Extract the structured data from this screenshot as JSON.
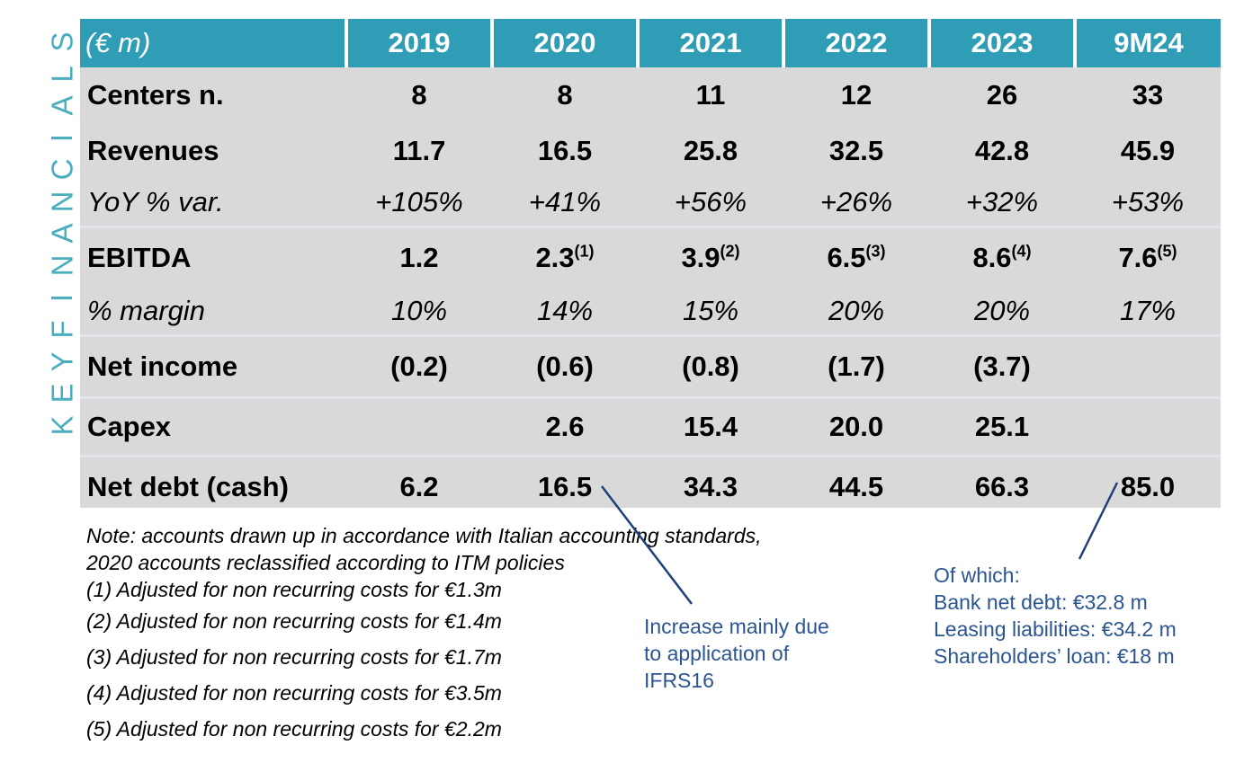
{
  "side_title": "KEY FINANCIALS",
  "table": {
    "unit_label": "(€ m)",
    "years": [
      "2019",
      "2020",
      "2021",
      "2022",
      "2023",
      "9M24"
    ],
    "rows": [
      {
        "label": "Centers n.",
        "values": [
          "8",
          "8",
          "11",
          "12",
          "26",
          "33"
        ],
        "sups": [
          "",
          "",
          "",
          "",
          "",
          ""
        ]
      },
      {
        "label": "Revenues",
        "values": [
          "11.7",
          "16.5",
          "25.8",
          "32.5",
          "42.8",
          "45.9"
        ],
        "sups": [
          "",
          "",
          "",
          "",
          "",
          ""
        ]
      },
      {
        "label": "YoY % var.",
        "values": [
          "+105%",
          "+41%",
          "+56%",
          "+26%",
          "+32%",
          "+53%"
        ],
        "sups": [
          "",
          "",
          "",
          "",
          "",
          ""
        ]
      },
      {
        "label": "EBITDA",
        "values": [
          "1.2",
          "2.3",
          "3.9",
          "6.5",
          "8.6",
          "7.6"
        ],
        "sups": [
          "",
          "(1)",
          "(2)",
          "(3)",
          "(4)",
          "(5)"
        ]
      },
      {
        "label": "% margin",
        "values": [
          "10%",
          "14%",
          "15%",
          "20%",
          "20%",
          "17%"
        ],
        "sups": [
          "",
          "",
          "",
          "",
          "",
          ""
        ]
      },
      {
        "label": "Net income",
        "values": [
          "(0.2)",
          "(0.6)",
          "(0.8)",
          "(1.7)",
          "(3.7)",
          ""
        ],
        "sups": [
          "",
          "",
          "",
          "",
          "",
          ""
        ]
      },
      {
        "label": "Capex",
        "values": [
          "",
          "2.6",
          "15.4",
          "20.0",
          "25.1",
          ""
        ],
        "sups": [
          "",
          "",
          "",
          "",
          "",
          ""
        ]
      },
      {
        "label": "Net debt (cash)",
        "values": [
          "6.2",
          "16.5",
          "34.3",
          "44.5",
          "66.3",
          "85.0"
        ],
        "sups": [
          "",
          "",
          "",
          "",
          "",
          ""
        ]
      }
    ]
  },
  "notes": {
    "line1": "Note: accounts drawn up in accordance with Italian accounting standards,",
    "line2": "2020 accounts reclassified according to ITM policies",
    "footnotes": [
      "(1) Adjusted for non recurring costs for €1.3m",
      "(2) Adjusted for non recurring costs for €1.4m",
      "(3) Adjusted for non recurring costs for €1.7m",
      "(4) Adjusted for non recurring costs for €3.5m",
      "(5) Adjusted for non recurring costs for €2.2m"
    ]
  },
  "callout_ifrs": [
    "Increase mainly due",
    "to application of",
    "IFRS16"
  ],
  "callout_debt": [
    "Of which:",
    "Bank net debt: €32.8 m",
    "Leasing liabilities: €34.2 m",
    "Shareholders’ loan: €18 m"
  ],
  "colors": {
    "header": "#2f9db5",
    "side_title": "#4aaebf",
    "table_bg": "#d9d9d9",
    "callout": "#2b5591"
  }
}
